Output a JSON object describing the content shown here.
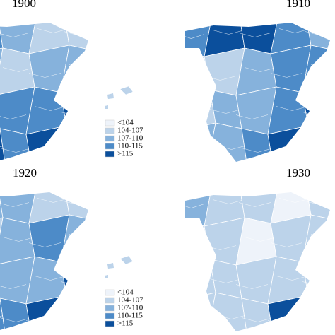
{
  "panels": [
    {
      "title": "1900",
      "legend": {
        "items": [
          {
            "label": "<104",
            "color": "#eef3fa"
          },
          {
            "label": "104-107",
            "color": "#bcd3ea"
          },
          {
            "label": "107-110",
            "color": "#86b2dc"
          },
          {
            "label": "110-115",
            "color": "#4d8bc8"
          },
          {
            "label": ">115",
            "color": "#0b4f9c"
          }
        ]
      }
    },
    {
      "title": "1910"
    },
    {
      "title": "1920",
      "legend": {
        "items": [
          {
            "label": "<104",
            "color": "#eef3fa"
          },
          {
            "label": "104-107",
            "color": "#bcd3ea"
          },
          {
            "label": "107-110",
            "color": "#86b2dc"
          },
          {
            "label": "110-115",
            "color": "#4d8bc8"
          },
          {
            "label": ">115",
            "color": "#0b4f9c"
          }
        ]
      }
    },
    {
      "title": "1930"
    }
  ]
}
